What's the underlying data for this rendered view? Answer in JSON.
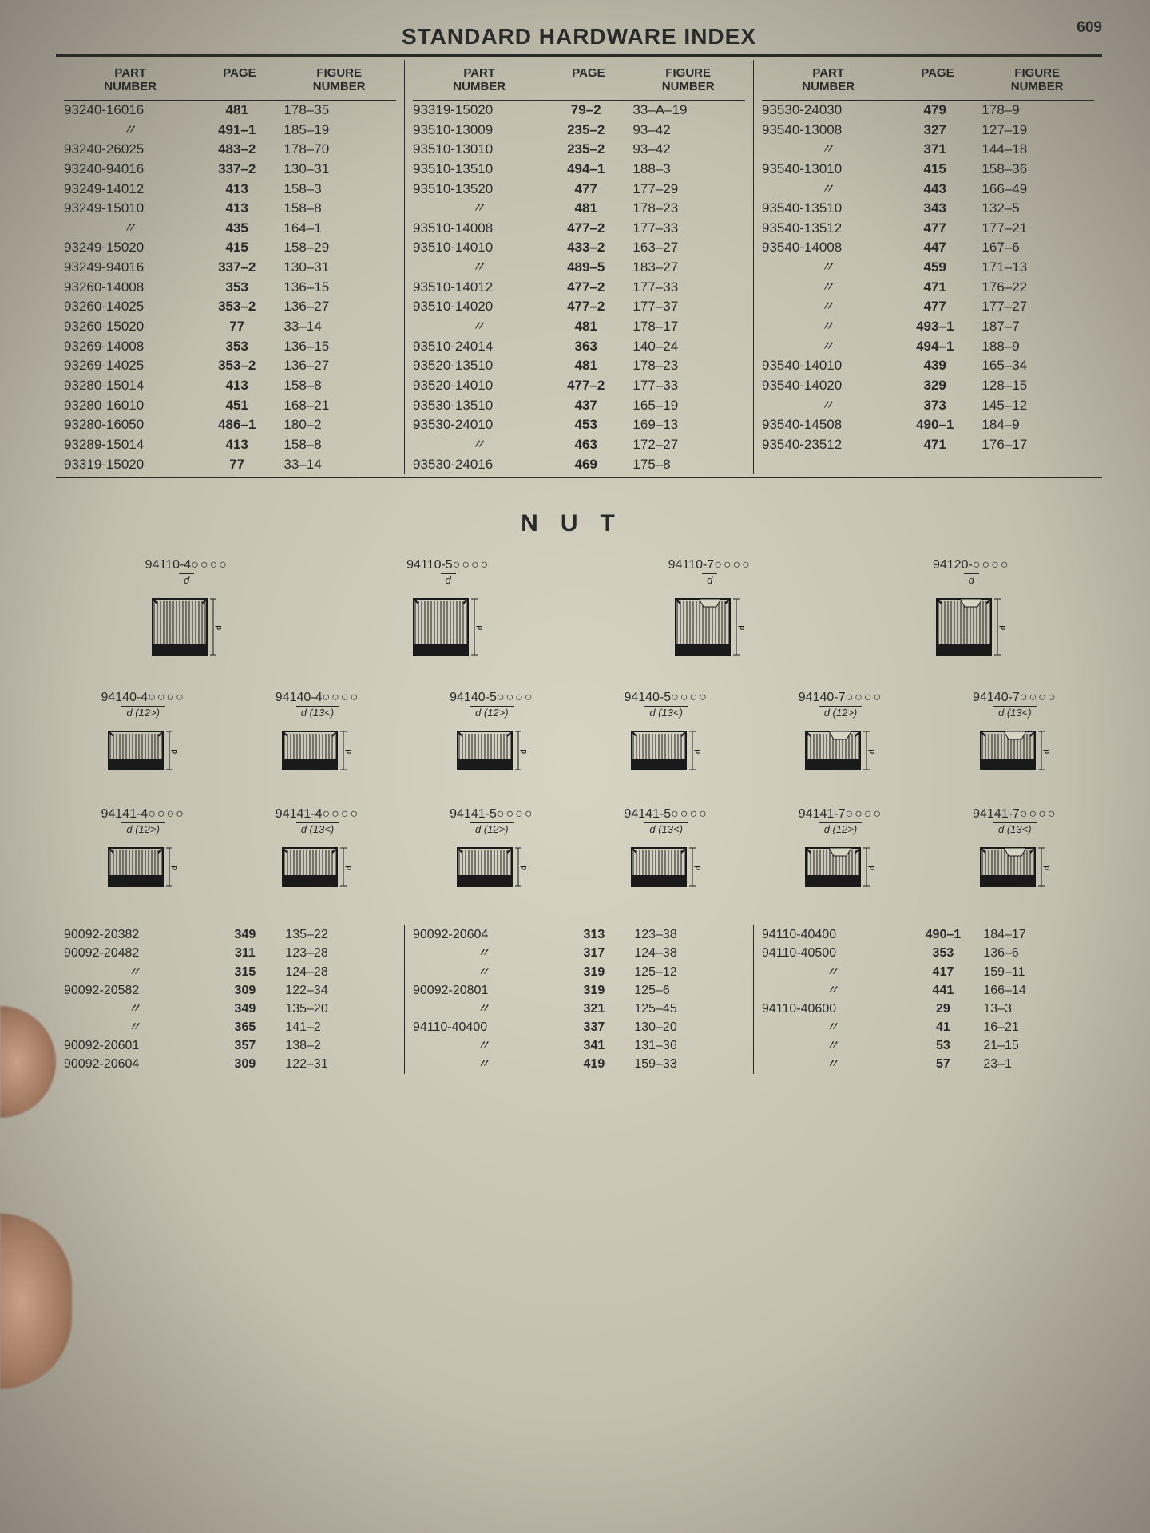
{
  "page_number": "609",
  "title": "STANDARD HARDWARE INDEX",
  "headers": {
    "part": "PART NUMBER",
    "page": "PAGE",
    "fig": "FIGURE NUMBER"
  },
  "ditto_mark": "〃",
  "index_columns": [
    [
      {
        "part": "93240-16016",
        "page": "481",
        "fig": "178–35"
      },
      {
        "part": "〃",
        "page": "491–1",
        "fig": "185–19"
      },
      {
        "part": "93240-26025",
        "page": "483–2",
        "fig": "178–70"
      },
      {
        "part": "93240-94016",
        "page": "337–2",
        "fig": "130–31"
      },
      {
        "part": "93249-14012",
        "page": "413",
        "fig": "158–3"
      },
      {
        "part": "93249-15010",
        "page": "413",
        "fig": "158–8"
      },
      {
        "part": "〃",
        "page": "435",
        "fig": "164–1"
      },
      {
        "part": "93249-15020",
        "page": "415",
        "fig": "158–29"
      },
      {
        "part": "93249-94016",
        "page": "337–2",
        "fig": "130–31"
      },
      {
        "part": "93260-14008",
        "page": "353",
        "fig": "136–15"
      },
      {
        "part": "93260-14025",
        "page": "353–2",
        "fig": "136–27"
      },
      {
        "part": "93260-15020",
        "page": "77",
        "fig": "33–14"
      },
      {
        "part": "93269-14008",
        "page": "353",
        "fig": "136–15"
      },
      {
        "part": "93269-14025",
        "page": "353–2",
        "fig": "136–27"
      },
      {
        "part": "93280-15014",
        "page": "413",
        "fig": "158–8"
      },
      {
        "part": "93280-16010",
        "page": "451",
        "fig": "168–21"
      },
      {
        "part": "93280-16050",
        "page": "486–1",
        "fig": "180–2"
      },
      {
        "part": "93289-15014",
        "page": "413",
        "fig": "158–8"
      },
      {
        "part": "93319-15020",
        "page": "77",
        "fig": "33–14"
      }
    ],
    [
      {
        "part": "93319-15020",
        "page": "79–2",
        "fig": "33–A–19"
      },
      {
        "part": "93510-13009",
        "page": "235–2",
        "fig": "93–42"
      },
      {
        "part": "93510-13010",
        "page": "235–2",
        "fig": "93–42"
      },
      {
        "part": "93510-13510",
        "page": "494–1",
        "fig": "188–3"
      },
      {
        "part": "93510-13520",
        "page": "477",
        "fig": "177–29"
      },
      {
        "part": "〃",
        "page": "481",
        "fig": "178–23"
      },
      {
        "part": "93510-14008",
        "page": "477–2",
        "fig": "177–33"
      },
      {
        "part": "93510-14010",
        "page": "433–2",
        "fig": "163–27"
      },
      {
        "part": "〃",
        "page": "489–5",
        "fig": "183–27"
      },
      {
        "part": "93510-14012",
        "page": "477–2",
        "fig": "177–33"
      },
      {
        "part": "93510-14020",
        "page": "477–2",
        "fig": "177–37"
      },
      {
        "part": "〃",
        "page": "481",
        "fig": "178–17"
      },
      {
        "part": "93510-24014",
        "page": "363",
        "fig": "140–24"
      },
      {
        "part": "93520-13510",
        "page": "481",
        "fig": "178–23"
      },
      {
        "part": "93520-14010",
        "page": "477–2",
        "fig": "177–33"
      },
      {
        "part": "93530-13510",
        "page": "437",
        "fig": "165–19"
      },
      {
        "part": "93530-24010",
        "page": "453",
        "fig": "169–13"
      },
      {
        "part": "〃",
        "page": "463",
        "fig": "172–27"
      },
      {
        "part": "93530-24016",
        "page": "469",
        "fig": "175–8"
      }
    ],
    [
      {
        "part": "93530-24030",
        "page": "479",
        "fig": "178–9"
      },
      {
        "part": "93540-13008",
        "page": "327",
        "fig": "127–19"
      },
      {
        "part": "〃",
        "page": "371",
        "fig": "144–18"
      },
      {
        "part": "93540-13010",
        "page": "415",
        "fig": "158–36"
      },
      {
        "part": "〃",
        "page": "443",
        "fig": "166–49"
      },
      {
        "part": "93540-13510",
        "page": "343",
        "fig": "132–5"
      },
      {
        "part": "93540-13512",
        "page": "477",
        "fig": "177–21"
      },
      {
        "part": "93540-14008",
        "page": "447",
        "fig": "167–6"
      },
      {
        "part": "〃",
        "page": "459",
        "fig": "171–13"
      },
      {
        "part": "〃",
        "page": "471",
        "fig": "176–22"
      },
      {
        "part": "〃",
        "page": "477",
        "fig": "177–27"
      },
      {
        "part": "〃",
        "page": "493–1",
        "fig": "187–7"
      },
      {
        "part": "〃",
        "page": "494–1",
        "fig": "188–9"
      },
      {
        "part": "93540-14010",
        "page": "439",
        "fig": "165–34"
      },
      {
        "part": "93540-14020",
        "page": "329",
        "fig": "128–15"
      },
      {
        "part": "〃",
        "page": "373",
        "fig": "145–12"
      },
      {
        "part": "93540-14508",
        "page": "490–1",
        "fig": "184–9"
      },
      {
        "part": "93540-23512",
        "page": "471",
        "fig": "176–17"
      }
    ]
  ],
  "section_title": "NUT",
  "nut_row1": [
    {
      "label": "94110-4",
      "sub": "d",
      "shape": "tall",
      "slot": false
    },
    {
      "label": "94110-5",
      "sub": "d",
      "shape": "tall",
      "slot": false
    },
    {
      "label": "94110-7",
      "sub": "d",
      "shape": "tall",
      "slot": true
    },
    {
      "label": "94120-",
      "sub": "d",
      "shape": "tall",
      "slot": true
    }
  ],
  "nut_row2": [
    {
      "label": "94140-4",
      "sub": "d (12>)",
      "shape": "short",
      "slot": false
    },
    {
      "label": "94140-4",
      "sub": "d (13<)",
      "shape": "short",
      "slot": false
    },
    {
      "label": "94140-5",
      "sub": "d (12>)",
      "shape": "short",
      "slot": false
    },
    {
      "label": "94140-5",
      "sub": "d (13<)",
      "shape": "short",
      "slot": false
    },
    {
      "label": "94140-7",
      "sub": "d (12>)",
      "shape": "short",
      "slot": true
    },
    {
      "label": "94140-7",
      "sub": "d (13<)",
      "shape": "short",
      "slot": true
    }
  ],
  "nut_row3": [
    {
      "label": "94141-4",
      "sub": "d (12>)",
      "shape": "short",
      "slot": false
    },
    {
      "label": "94141-4",
      "sub": "d (13<)",
      "shape": "short",
      "slot": false
    },
    {
      "label": "94141-5",
      "sub": "d (12>)",
      "shape": "short",
      "slot": false
    },
    {
      "label": "94141-5",
      "sub": "d (13<)",
      "shape": "short",
      "slot": false
    },
    {
      "label": "94141-7",
      "sub": "d (12>)",
      "shape": "short",
      "slot": true
    },
    {
      "label": "94141-7",
      "sub": "d (13<)",
      "shape": "short",
      "slot": true
    }
  ],
  "lower_columns": [
    [
      {
        "part": "90092-20382",
        "page": "349",
        "fig": "135–22"
      },
      {
        "part": "90092-20482",
        "page": "311",
        "fig": "123–28"
      },
      {
        "part": "〃",
        "page": "315",
        "fig": "124–28"
      },
      {
        "part": "90092-20582",
        "page": "309",
        "fig": "122–34"
      },
      {
        "part": "〃",
        "page": "349",
        "fig": "135–20"
      },
      {
        "part": "〃",
        "page": "365",
        "fig": "141–2"
      },
      {
        "part": "90092-20601",
        "page": "357",
        "fig": "138–2"
      },
      {
        "part": "90092-20604",
        "page": "309",
        "fig": "122–31"
      }
    ],
    [
      {
        "part": "90092-20604",
        "page": "313",
        "fig": "123–38"
      },
      {
        "part": "〃",
        "page": "317",
        "fig": "124–38"
      },
      {
        "part": "〃",
        "page": "319",
        "fig": "125–12"
      },
      {
        "part": "90092-20801",
        "page": "319",
        "fig": "125–6"
      },
      {
        "part": "〃",
        "page": "321",
        "fig": "125–45"
      },
      {
        "part": "94110-40400",
        "page": "337",
        "fig": "130–20"
      },
      {
        "part": "〃",
        "page": "341",
        "fig": "131–36"
      },
      {
        "part": "〃",
        "page": "419",
        "fig": "159–33"
      }
    ],
    [
      {
        "part": "94110-40400",
        "page": "490–1",
        "fig": "184–17"
      },
      {
        "part": "94110-40500",
        "page": "353",
        "fig": "136–6"
      },
      {
        "part": "〃",
        "page": "417",
        "fig": "159–11"
      },
      {
        "part": "〃",
        "page": "441",
        "fig": "166–14"
      },
      {
        "part": "94110-40600",
        "page": "29",
        "fig": "13–3"
      },
      {
        "part": "〃",
        "page": "41",
        "fig": "16–21"
      },
      {
        "part": "〃",
        "page": "53",
        "fig": "21–15"
      },
      {
        "part": "〃",
        "page": "57",
        "fig": "23–1"
      }
    ]
  ],
  "nut_svg": {
    "stroke": "#1a1a1a",
    "fill_dark": "#1a1a1a",
    "fill_light": "none",
    "hatch_gap": 4
  }
}
